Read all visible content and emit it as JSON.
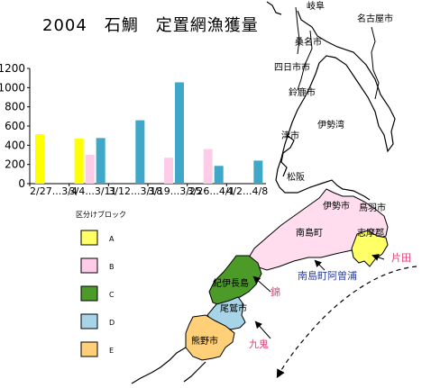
{
  "header": {
    "title": "2004　石鯛　定置網漁獲量"
  },
  "chart_data": {
    "type": "bar",
    "categories": [
      "2/27...3/4",
      "3/4...3/11",
      "3/12...3/18",
      "3/19...3/25",
      "3/26...4/1",
      "4/2...4/8"
    ],
    "yticks": [
      "0",
      "200",
      "400",
      "600",
      "800",
      "1000",
      "1200"
    ],
    "ylim": [
      0,
      1200
    ],
    "series": [
      {
        "name": "A",
        "color": "#ffff00",
        "values": [
          515,
          470,
          0,
          0,
          0,
          0
        ]
      },
      {
        "name": "B",
        "color": "#ffcce8",
        "values": [
          0,
          300,
          0,
          270,
          360,
          0
        ]
      },
      {
        "name": "D",
        "color": "#3fa7c8",
        "values": [
          0,
          475,
          660,
          1055,
          185,
          240
        ]
      }
    ]
  },
  "legend": {
    "title": "区分けブロック",
    "items": [
      {
        "label": "A",
        "color": "#ffff66"
      },
      {
        "label": "B",
        "color": "#ffcce8"
      },
      {
        "label": "C",
        "color": "#4c9b28"
      },
      {
        "label": "D",
        "color": "#a8d4e8"
      },
      {
        "label": "E",
        "color": "#ffd078"
      }
    ]
  },
  "map": {
    "cities": {
      "gifu": "岐阜",
      "nagoya": "名古屋市",
      "kuwana": "桑名市",
      "yokkaichi": "四日市市",
      "suzuka": "鈴鹿市",
      "tsu": "津市",
      "matsusaka": "松阪",
      "ise": "伊勢市",
      "toba": "鳥羽市",
      "minami_ise": "南島町",
      "shima": "志摩郡",
      "kiinagashima": "紀伊長島",
      "owase": "尾鷲市",
      "kumano": "熊野市"
    },
    "sea": "伊勢湾",
    "annotations": {
      "katada": "片田",
      "ago_ura": "南島町阿曽浦",
      "nishiki": "錦",
      "kuki": "九鬼"
    }
  }
}
